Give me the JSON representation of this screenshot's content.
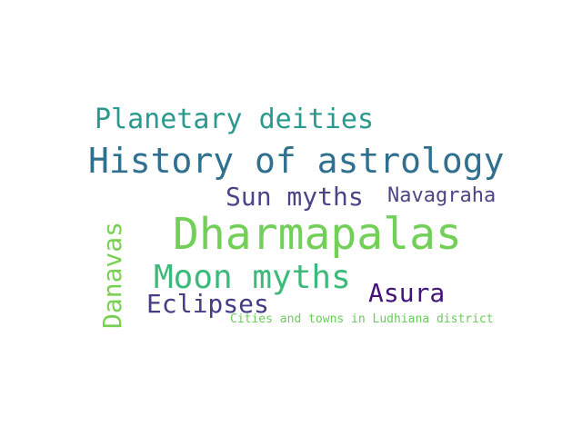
{
  "words": [
    {
      "text": "Planetary deities",
      "color": "#2a9a8e"
    },
    {
      "text": "History of astrology",
      "color": "#2f7090"
    },
    {
      "text": "Sun myths",
      "color": "#4a4488"
    },
    {
      "text": "Navagraha",
      "color": "#4e4585"
    },
    {
      "text": "Dharmapalas",
      "color": "#72cf58"
    },
    {
      "text": "Danavas",
      "color": "#78d152"
    },
    {
      "text": "Moon myths",
      "color": "#3bba7a"
    },
    {
      "text": "Asura",
      "color": "#43137a"
    },
    {
      "text": "Eclipses",
      "color": "#433d85"
    },
    {
      "text": "Cities and towns in Ludhiana district",
      "color": "#6acd5a"
    }
  ]
}
